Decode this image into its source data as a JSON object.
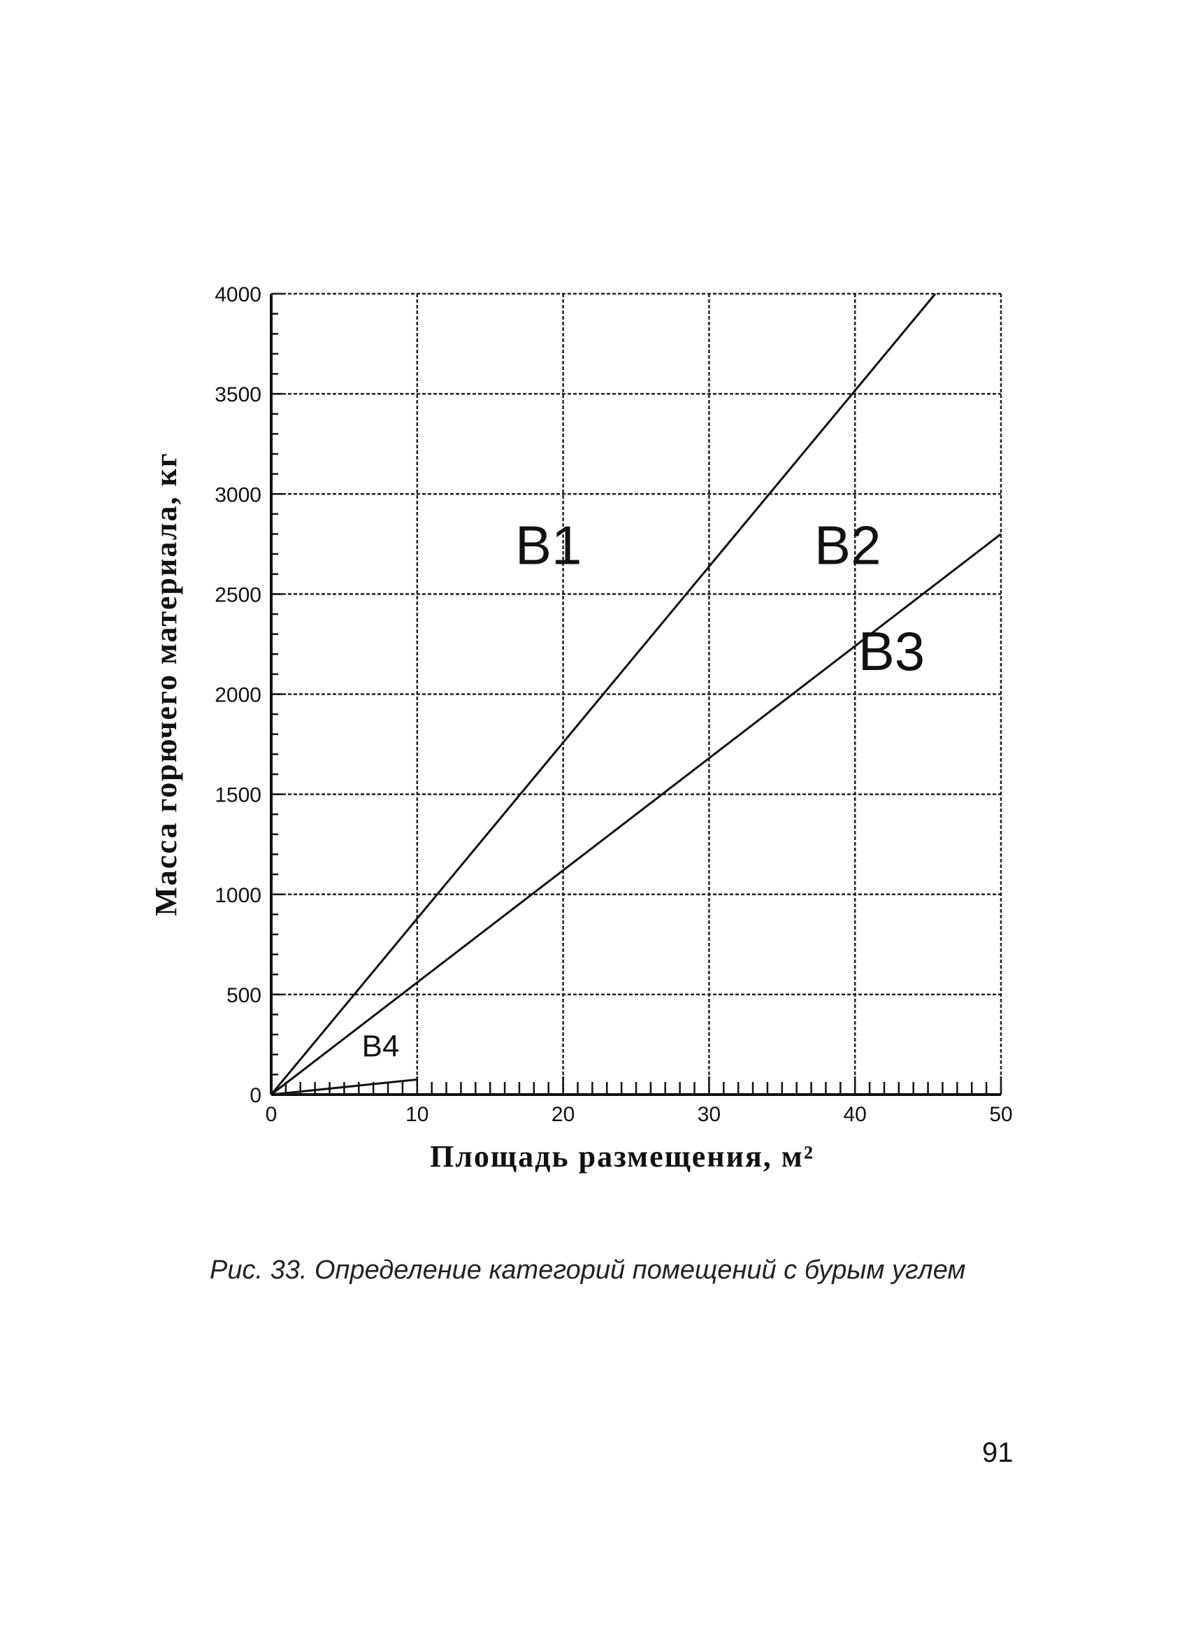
{
  "chart_data": {
    "type": "line",
    "xlabel": "Площадь размещения, м²",
    "ylabel": "Масса горючего материала, кг",
    "xlim": [
      0,
      50
    ],
    "ylim": [
      0,
      4000
    ],
    "xticks": [
      0,
      10,
      20,
      30,
      40,
      50
    ],
    "yticks": [
      0,
      500,
      1000,
      1500,
      2000,
      2500,
      3000,
      3500,
      4000
    ],
    "grid": true,
    "series": [
      {
        "x": [
          0,
          45.5
        ],
        "y": [
          0,
          4000
        ]
      },
      {
        "x": [
          0,
          50
        ],
        "y": [
          0,
          2800
        ]
      },
      {
        "x": [
          0,
          10
        ],
        "y": [
          0,
          75
        ]
      }
    ],
    "annotations": [
      {
        "text": "В1",
        "x": 19,
        "y": 2650,
        "size": "large"
      },
      {
        "text": "В2",
        "x": 39.5,
        "y": 2650,
        "size": "large"
      },
      {
        "text": "В3",
        "x": 42.5,
        "y": 2120,
        "size": "large"
      },
      {
        "text": "В4",
        "x": 7.5,
        "y": 190,
        "size": "small"
      }
    ]
  },
  "caption": "Рис. 33. Определение категорий помещений с бурым углем",
  "page_number": "91"
}
